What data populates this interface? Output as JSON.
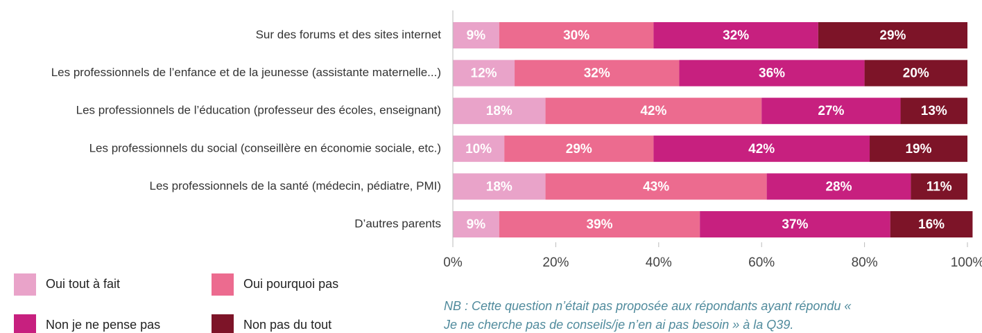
{
  "chart_data": {
    "type": "stacked_bar_horizontal",
    "categories": [
      "Sur des forums et des sites internet",
      "Les professionnels de l’enfance et de la jeunesse (assistante maternelle...)",
      "Les professionnels de l’éducation (professeur des écoles, enseignant)",
      "Les professionnels du social (conseillère en économie sociale, etc.)",
      "Les professionnels de la santé (médecin, pédiatre, PMI)",
      "D’autres parents"
    ],
    "series": [
      {
        "name": "Oui tout à fait",
        "color": "#e9a3c9",
        "values": [
          9,
          12,
          18,
          10,
          18,
          9
        ],
        "value_labels": [
          "9%",
          "12%",
          "18%",
          "10%",
          "18%",
          "9%"
        ]
      },
      {
        "name": "Oui pourquoi pas",
        "color": "#ec6b8f",
        "values": [
          30,
          32,
          42,
          29,
          43,
          39
        ],
        "value_labels": [
          "30%",
          "32%",
          "42%",
          "29%",
          "43%",
          "39%"
        ]
      },
      {
        "name": "Non je ne pense pas",
        "color": "#c7207f",
        "values": [
          32,
          36,
          27,
          42,
          28,
          37
        ],
        "value_labels": [
          "32%",
          "36%",
          "27%",
          "42%",
          "28%",
          "37%"
        ]
      },
      {
        "name": "Non pas du tout",
        "color": "#7d1428",
        "values": [
          29,
          20,
          13,
          19,
          11,
          16
        ],
        "value_labels": [
          "29%",
          "20%",
          "13%",
          "19%",
          "11%",
          "16%"
        ]
      }
    ],
    "xlim": [
      0,
      100
    ],
    "xticks": [
      {
        "value": 0,
        "label": "0%"
      },
      {
        "value": 20,
        "label": "20%"
      },
      {
        "value": 40,
        "label": "40%"
      },
      {
        "value": 60,
        "label": "60%"
      },
      {
        "value": 80,
        "label": "80%"
      },
      {
        "value": 100,
        "label": "100%"
      }
    ],
    "note": [
      "NB : Cette question n’était pas proposée aux répondants ayant répondu «",
      "Je ne cherche pas de conseils/je n’en ai pas besoin » à la Q39."
    ]
  }
}
